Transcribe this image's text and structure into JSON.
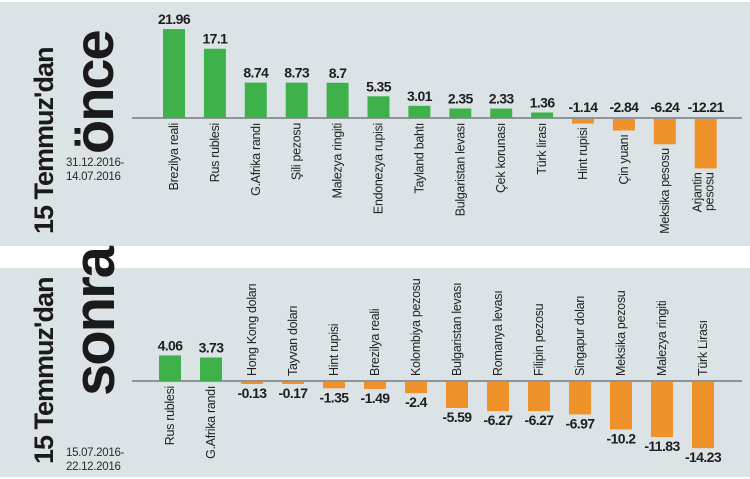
{
  "colors": {
    "positive": "#3fb14b",
    "negative": "#f0922a",
    "axis": "#8e9498",
    "panel_bg": "#dce3e6"
  },
  "chart_data": [
    {
      "type": "bar",
      "panel": "top",
      "title_line1": "15 Temmuz'dan",
      "title_line2": "önce",
      "date_range_start": "31.12.2016-",
      "date_range_end": "14.07.2016",
      "xlabel": "",
      "ylabel": "",
      "grid": false,
      "categories": [
        "Brezilya reali",
        "Rus rublesi",
        "G.Afrika randı",
        "Şili pezosu",
        "Malezya ringiti",
        "Endonezya rupisi",
        "Tayland bahtı",
        "Bulgaristan levası",
        "Çek korunası",
        "Türk lirası",
        "Hint rupisi",
        "Çin yuanı",
        "Meksika pesosu",
        "Arjantin pesosu"
      ],
      "values": [
        21.96,
        17.1,
        8.74,
        8.73,
        8.7,
        5.35,
        3.01,
        2.35,
        2.33,
        1.36,
        -1.14,
        -2.84,
        -6.24,
        -12.21
      ],
      "value_labels": [
        "21.96",
        "17.1",
        "8.74",
        "8.73",
        "8.7",
        "5.35",
        "3.01",
        "2.35",
        "2.33",
        "1.36",
        "-1.14",
        "-2.84",
        "-6.24",
        "-12.21"
      ],
      "ylim": [
        -13,
        23
      ]
    },
    {
      "type": "bar",
      "panel": "bottom",
      "title_line1": "15 Temmuz'dan",
      "title_line2": "sonra",
      "date_range_start": "15.07.2016-",
      "date_range_end": "22.12.2016",
      "xlabel": "",
      "ylabel": "",
      "grid": false,
      "categories": [
        "Rus rublesi",
        "G.Afrika randı",
        "Hong Kong doları",
        "Tayvan doları",
        "Hint rupisi",
        "Brezilya reali",
        "Kolombiya pezosu",
        "Bulgaristan levası",
        "Romanya levası",
        "Filipin pezosu",
        "Singapur doları",
        "Meksika pezosu",
        "Malezya ringiti",
        "Türk Lirası"
      ],
      "values": [
        4.06,
        3.73,
        -0.13,
        -0.17,
        -1.35,
        -1.49,
        -2.4,
        -5.59,
        -6.27,
        -6.27,
        -6.97,
        -10.2,
        -11.83,
        -14.23
      ],
      "value_labels": [
        "4.06",
        "3.73",
        "-0.13",
        "-0.17",
        "-1.35",
        "-1.49",
        "-2.4",
        "-5.59",
        "-6.27",
        "-6.27",
        "-6.97",
        "-10.2",
        "-11.83",
        "-14.23"
      ],
      "ylim": [
        -15,
        5
      ]
    }
  ]
}
